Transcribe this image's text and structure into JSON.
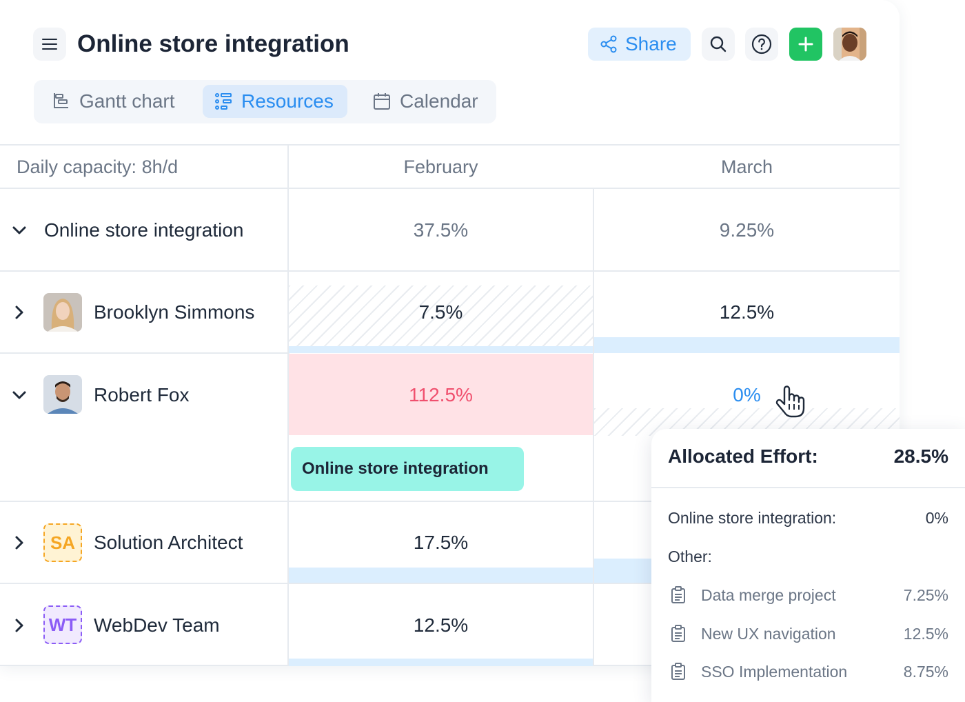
{
  "header": {
    "title": "Online store integration",
    "share_label": "Share",
    "icons": [
      "menu-icon",
      "share-icon",
      "search-icon",
      "help-icon",
      "plus-icon"
    ]
  },
  "tabs": [
    {
      "label": "Gantt chart",
      "icon": "gantt-icon",
      "active": false
    },
    {
      "label": "Resources",
      "icon": "resources-icon",
      "active": true
    },
    {
      "label": "Calendar",
      "icon": "calendar-icon",
      "active": false
    }
  ],
  "table": {
    "capacity_label": "Daily capacity: 8h/d",
    "months": [
      "February",
      "March"
    ],
    "rows": [
      {
        "name": "Online store integration",
        "expanded": true,
        "feb": "37.5%",
        "mar": "9.25%"
      },
      {
        "name": "Brooklyn Simmons",
        "expanded": false,
        "feb": "7.5%",
        "mar": "12.5%"
      },
      {
        "name": "Robert Fox",
        "expanded": true,
        "feb": "112.5%",
        "mar": "0%"
      },
      {
        "name": "Solution Architect",
        "badge": "SA",
        "expanded": false,
        "feb": "17.5%"
      },
      {
        "name": "WebDev Team",
        "badge": "WT",
        "expanded": false,
        "feb": "12.5%"
      }
    ],
    "task_bar_label": "Online store integration"
  },
  "popup": {
    "title": "Allocated Effort:",
    "total": "28.5%",
    "current_label": "Online store integration:",
    "current_value": "0%",
    "other_label": "Other:",
    "items": [
      {
        "name": "Data merge project",
        "value": "7.25%"
      },
      {
        "name": "New UX navigation",
        "value": "12.5%"
      },
      {
        "name": "SSO Implementation",
        "value": "8.75%"
      }
    ]
  },
  "colors": {
    "accent": "#2a8df0",
    "add_button": "#21c463",
    "overload_bg": "#ffe2e6",
    "overload_text": "#f0506e",
    "task_bar": "#98f4e7",
    "sa_badge": "#f5a623",
    "wt_badge": "#8b5cf6"
  }
}
